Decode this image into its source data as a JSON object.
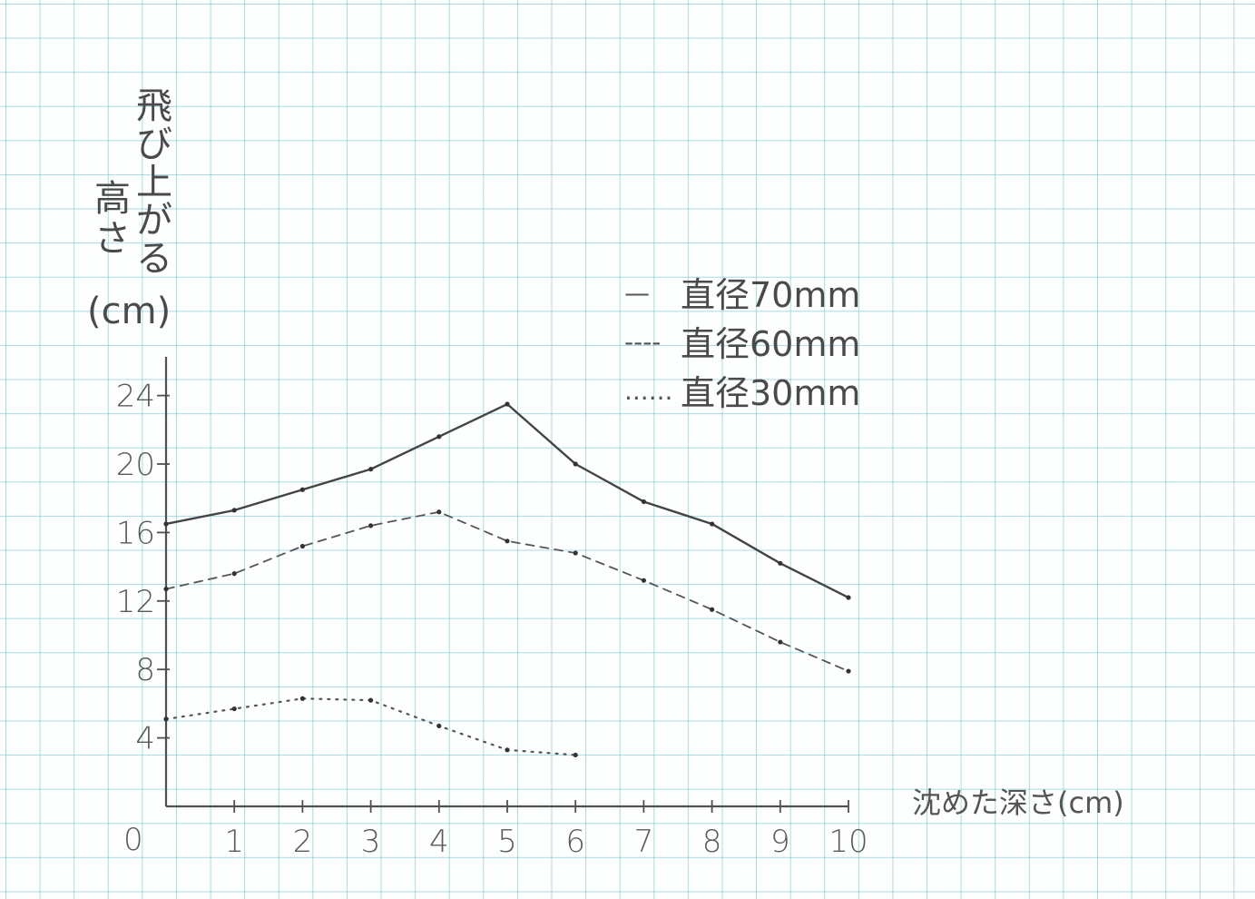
{
  "chart_data": {
    "type": "line",
    "xlabel": "沈めた深さ(cm)",
    "ylabel": "飛び上がる高さ(cm)",
    "x": [
      0,
      1,
      2,
      3,
      4,
      5,
      6,
      7,
      8,
      9,
      10
    ],
    "x_ticks": [
      "0",
      "1",
      "2",
      "3",
      "4",
      "5",
      "6",
      "7",
      "8",
      "9",
      "10"
    ],
    "y_ticks": [
      "4",
      "8",
      "12",
      "16",
      "20",
      "24"
    ],
    "xlim": [
      0,
      10
    ],
    "ylim": [
      0,
      24
    ],
    "grid": true,
    "legend_position": "top-right",
    "series": [
      {
        "name": "直径70mm",
        "line_style": "solid",
        "legend_mark": "—",
        "x": [
          0,
          1,
          2,
          3,
          4,
          5,
          6,
          7,
          8,
          9,
          10
        ],
        "values": [
          16.5,
          17.3,
          18.5,
          19.7,
          21.6,
          23.5,
          20.0,
          17.8,
          16.5,
          14.2,
          12.2
        ]
      },
      {
        "name": "直径60mm",
        "line_style": "dashed",
        "legend_mark": "----",
        "x": [
          0,
          1,
          2,
          3,
          4,
          5,
          6,
          7,
          8,
          9,
          10
        ],
        "values": [
          12.7,
          13.6,
          15.2,
          16.4,
          17.2,
          15.5,
          14.8,
          13.2,
          11.5,
          9.6,
          7.9
        ]
      },
      {
        "name": "直径30mm",
        "line_style": "dotted",
        "legend_mark": "......",
        "x": [
          0,
          1,
          2,
          3,
          4,
          5,
          6
        ],
        "values": [
          5.1,
          5.7,
          6.3,
          6.2,
          4.7,
          3.3,
          3.0
        ]
      }
    ]
  }
}
